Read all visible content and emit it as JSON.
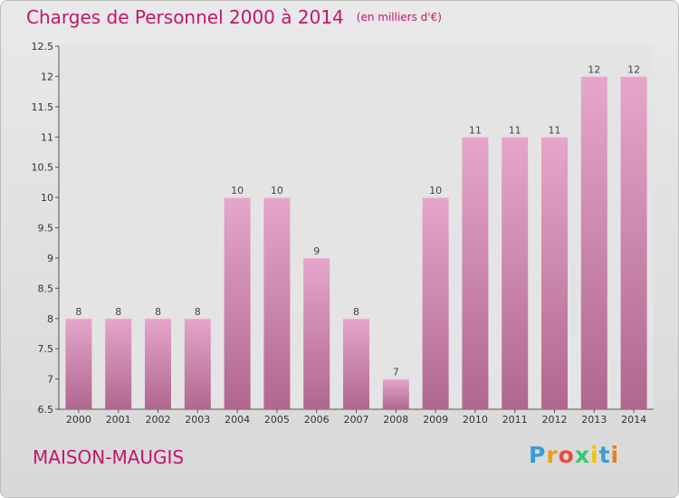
{
  "title": "Charges de Personnel 2000 à 2014",
  "unit": "(en milliers d'€)",
  "commune": "MAISON-MAUGIS",
  "logo": {
    "letters": [
      "P",
      "r",
      "o",
      "x",
      "i",
      "t",
      "i"
    ],
    "colors": [
      "#3a9bd6",
      "#f39c12",
      "#e74c3c",
      "#2ecc71",
      "#f1c40f",
      "#3a9bd6",
      "#e67e22"
    ]
  },
  "colors": {
    "bar_top": "#e6a6cb",
    "bar_bottom": "#b0678f",
    "accent": "#c0176f"
  },
  "chart_data": {
    "type": "bar",
    "categories": [
      "2000",
      "2001",
      "2002",
      "2003",
      "2004",
      "2005",
      "2006",
      "2007",
      "2008",
      "2009",
      "2010",
      "2011",
      "2012",
      "2013",
      "2014"
    ],
    "values": [
      8,
      8,
      8,
      8,
      10,
      10,
      9,
      8,
      7,
      10,
      11,
      11,
      11,
      12,
      12
    ],
    "data_labels": [
      "8",
      "8",
      "8",
      "8",
      "10",
      "10",
      "9",
      "8",
      "7",
      "10",
      "11",
      "11",
      "11",
      "12",
      "12"
    ],
    "ylim": [
      6.5,
      12.5
    ],
    "yticks": [
      6.5,
      7,
      7.5,
      8,
      8.5,
      9,
      9.5,
      10,
      10.5,
      11,
      11.5,
      12,
      12.5
    ],
    "ytick_labels": [
      "6.5",
      "7",
      "7.5",
      "8",
      "8.5",
      "9",
      "9.5",
      "10",
      "10.5",
      "11",
      "11.5",
      "12",
      "12.5"
    ],
    "grid": false,
    "legend": "none"
  }
}
